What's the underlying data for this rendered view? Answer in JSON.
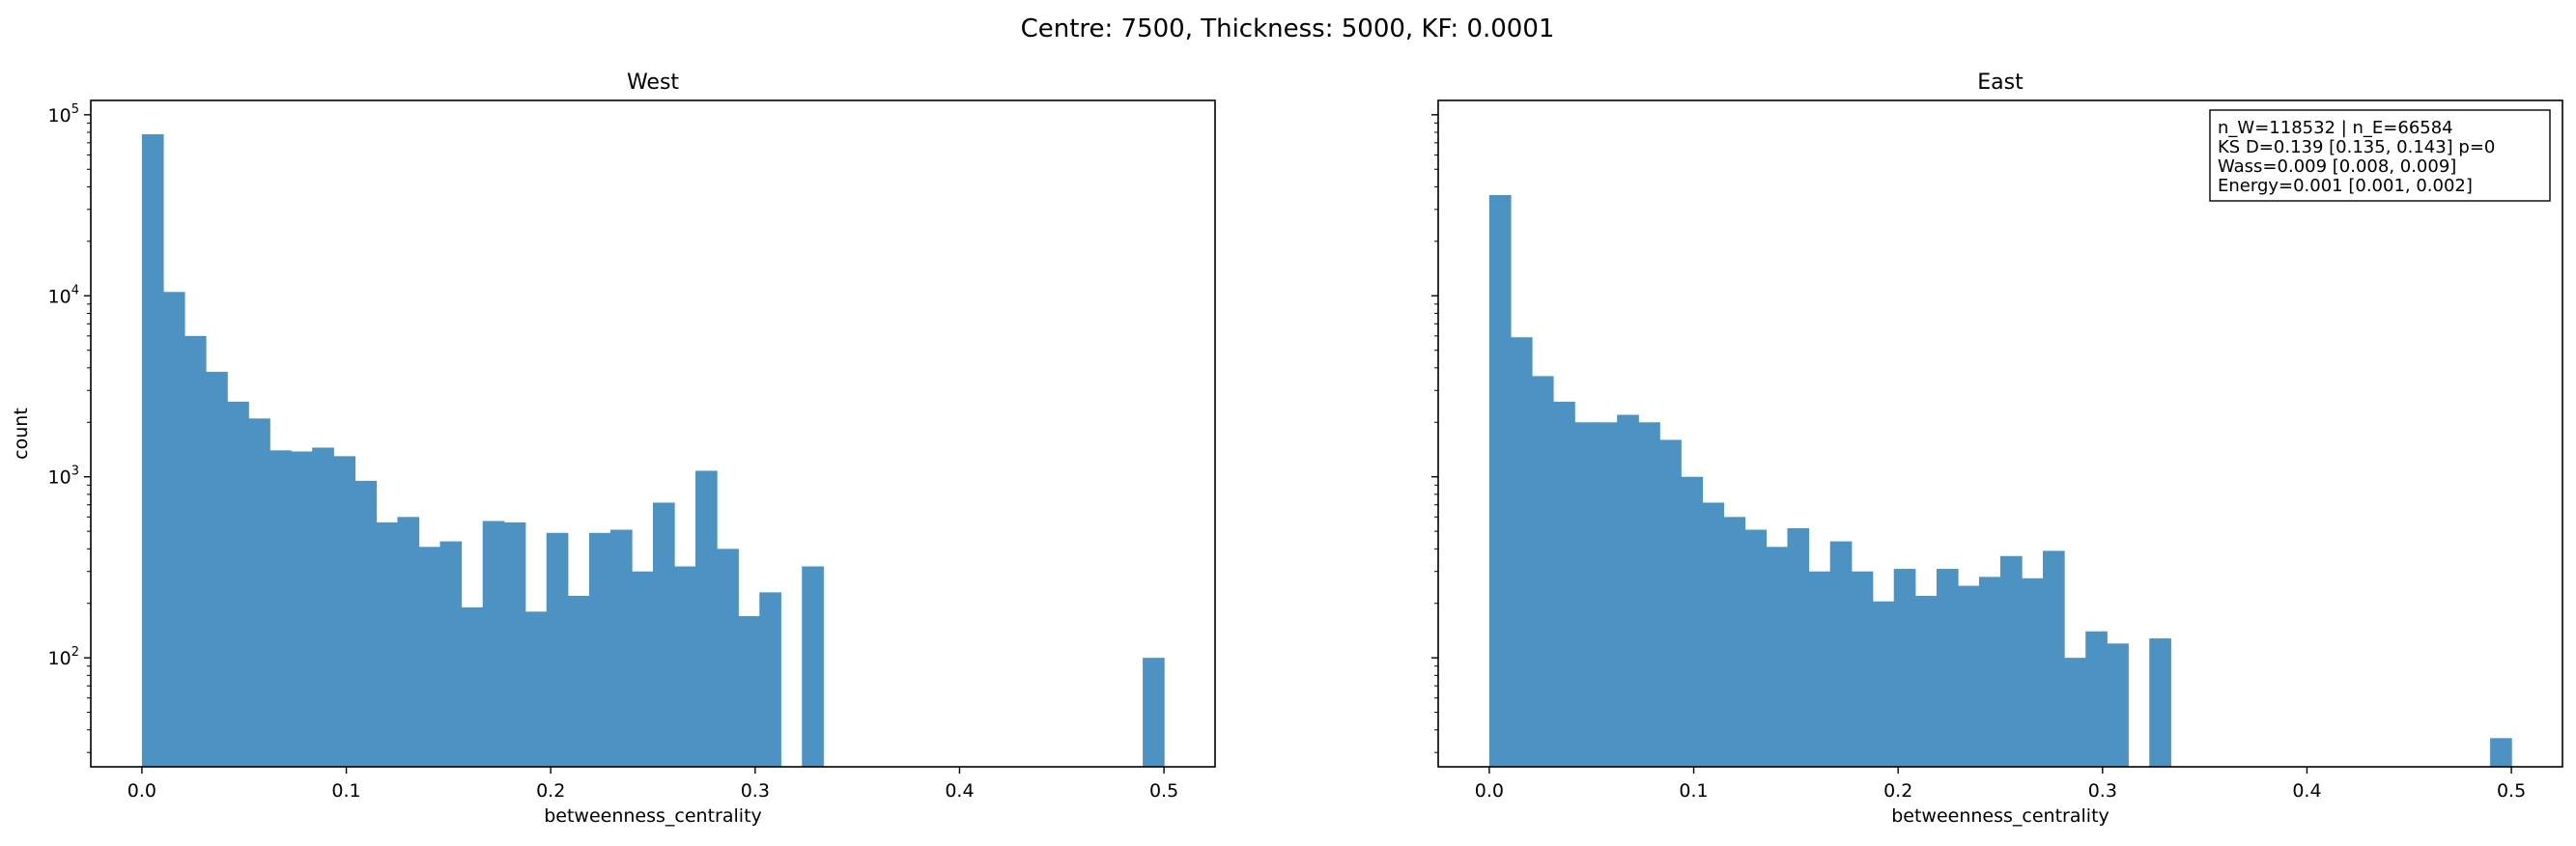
{
  "figure": {
    "suptitle": "Centre: 7500, Thickness: 5000, KF: 0.0001"
  },
  "chart_data": [
    {
      "type": "bar",
      "title": "West",
      "xlabel": "betweenness_centrality",
      "ylabel": "count",
      "xlim": [
        -0.025,
        0.525
      ],
      "ylim": [
        25,
        120000
      ],
      "yscale": "log",
      "grid": false,
      "bar_color": "#4c93c4",
      "bin_width": 0.01042,
      "xticks": [
        0.0,
        0.1,
        0.2,
        0.3,
        0.4,
        0.5
      ],
      "xtick_labels": [
        "0.0",
        "0.1",
        "0.2",
        "0.3",
        "0.4",
        "0.5"
      ],
      "yticks": [
        100,
        1000,
        10000,
        100000
      ],
      "ytick_labels": [
        "10^2",
        "10^3",
        "10^4",
        "10^5"
      ],
      "bins": [
        {
          "x": 0.0,
          "value": 78000
        },
        {
          "x": 0.0104,
          "value": 10500
        },
        {
          "x": 0.0208,
          "value": 6000
        },
        {
          "x": 0.0313,
          "value": 3800
        },
        {
          "x": 0.0417,
          "value": 2600
        },
        {
          "x": 0.0521,
          "value": 2100
        },
        {
          "x": 0.0625,
          "value": 1400
        },
        {
          "x": 0.0729,
          "value": 1380
        },
        {
          "x": 0.0833,
          "value": 1450
        },
        {
          "x": 0.0938,
          "value": 1300
        },
        {
          "x": 0.1042,
          "value": 950
        },
        {
          "x": 0.1146,
          "value": 560
        },
        {
          "x": 0.125,
          "value": 600
        },
        {
          "x": 0.1354,
          "value": 410
        },
        {
          "x": 0.1458,
          "value": 440
        },
        {
          "x": 0.1563,
          "value": 190
        },
        {
          "x": 0.1667,
          "value": 570
        },
        {
          "x": 0.1771,
          "value": 560
        },
        {
          "x": 0.1875,
          "value": 180
        },
        {
          "x": 0.1979,
          "value": 490
        },
        {
          "x": 0.2083,
          "value": 220
        },
        {
          "x": 0.2188,
          "value": 490
        },
        {
          "x": 0.2292,
          "value": 510
        },
        {
          "x": 0.2396,
          "value": 300
        },
        {
          "x": 0.25,
          "value": 720
        },
        {
          "x": 0.2604,
          "value": 320
        },
        {
          "x": 0.2708,
          "value": 1080
        },
        {
          "x": 0.2813,
          "value": 400
        },
        {
          "x": 0.2917,
          "value": 170
        },
        {
          "x": 0.3021,
          "value": 230
        },
        {
          "x": 0.3229,
          "value": 320
        },
        {
          "x": 0.4896,
          "value": 100
        }
      ]
    },
    {
      "type": "bar",
      "title": "East",
      "xlabel": "betweenness_centrality",
      "ylabel": "",
      "xlim": [
        -0.025,
        0.525
      ],
      "ylim": [
        25,
        120000
      ],
      "yscale": "log",
      "grid": false,
      "bar_color": "#4c93c4",
      "bin_width": 0.01042,
      "xticks": [
        0.0,
        0.1,
        0.2,
        0.3,
        0.4,
        0.5
      ],
      "xtick_labels": [
        "0.0",
        "0.1",
        "0.2",
        "0.3",
        "0.4",
        "0.5"
      ],
      "yticks": [
        100,
        1000,
        10000,
        100000
      ],
      "ytick_labels": [],
      "annotation": {
        "placement": "top-right",
        "lines": [
          "n_W=118532 | n_E=66584",
          "KS D=0.139 [0.135, 0.143]  p=0",
          "Wass=0.009 [0.008, 0.009]",
          "Energy=0.001 [0.001, 0.002]"
        ]
      },
      "bins": [
        {
          "x": 0.0,
          "value": 36000
        },
        {
          "x": 0.0104,
          "value": 5900
        },
        {
          "x": 0.0208,
          "value": 3600
        },
        {
          "x": 0.0313,
          "value": 2600
        },
        {
          "x": 0.0417,
          "value": 2000
        },
        {
          "x": 0.0521,
          "value": 2000
        },
        {
          "x": 0.0625,
          "value": 2200
        },
        {
          "x": 0.0729,
          "value": 2000
        },
        {
          "x": 0.0833,
          "value": 1600
        },
        {
          "x": 0.0938,
          "value": 1000
        },
        {
          "x": 0.1042,
          "value": 720
        },
        {
          "x": 0.1146,
          "value": 600
        },
        {
          "x": 0.125,
          "value": 510
        },
        {
          "x": 0.1354,
          "value": 410
        },
        {
          "x": 0.1458,
          "value": 520
        },
        {
          "x": 0.1563,
          "value": 300
        },
        {
          "x": 0.1667,
          "value": 440
        },
        {
          "x": 0.1771,
          "value": 300
        },
        {
          "x": 0.1875,
          "value": 205
        },
        {
          "x": 0.1979,
          "value": 310
        },
        {
          "x": 0.2083,
          "value": 220
        },
        {
          "x": 0.2188,
          "value": 310
        },
        {
          "x": 0.2292,
          "value": 250
        },
        {
          "x": 0.2396,
          "value": 280
        },
        {
          "x": 0.25,
          "value": 365
        },
        {
          "x": 0.2604,
          "value": 275
        },
        {
          "x": 0.2708,
          "value": 390
        },
        {
          "x": 0.2813,
          "value": 100
        },
        {
          "x": 0.2917,
          "value": 140
        },
        {
          "x": 0.3021,
          "value": 120
        },
        {
          "x": 0.3229,
          "value": 128
        },
        {
          "x": 0.4896,
          "value": 36
        }
      ]
    }
  ]
}
